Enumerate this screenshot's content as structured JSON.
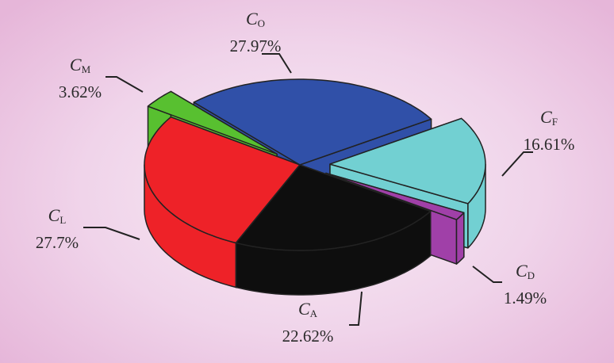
{
  "chart_data": {
    "type": "pie",
    "style": "3d-exploded",
    "slices": [
      {
        "symbol": "C",
        "subscript": "O",
        "value": 27.97,
        "label": "27.97%",
        "color": "#3050a8",
        "exploded": false
      },
      {
        "symbol": "C",
        "subscript": "F",
        "value": 16.61,
        "label": "16.61%",
        "color": "#72d0d2",
        "exploded": true
      },
      {
        "symbol": "C",
        "subscript": "D",
        "value": 1.49,
        "label": "1.49%",
        "color": "#a040a8",
        "exploded": true
      },
      {
        "symbol": "C",
        "subscript": "A",
        "value": 22.62,
        "label": "22.62%",
        "color": "#0e0e0e",
        "exploded": false
      },
      {
        "symbol": "C",
        "subscript": "L",
        "value": 27.7,
        "label": "27.7%",
        "color": "#ee2228",
        "exploded": false
      },
      {
        "symbol": "C",
        "subscript": "M",
        "value": 3.62,
        "label": "3.62%",
        "color": "#58c030",
        "exploded": true
      }
    ],
    "legend": "none"
  }
}
